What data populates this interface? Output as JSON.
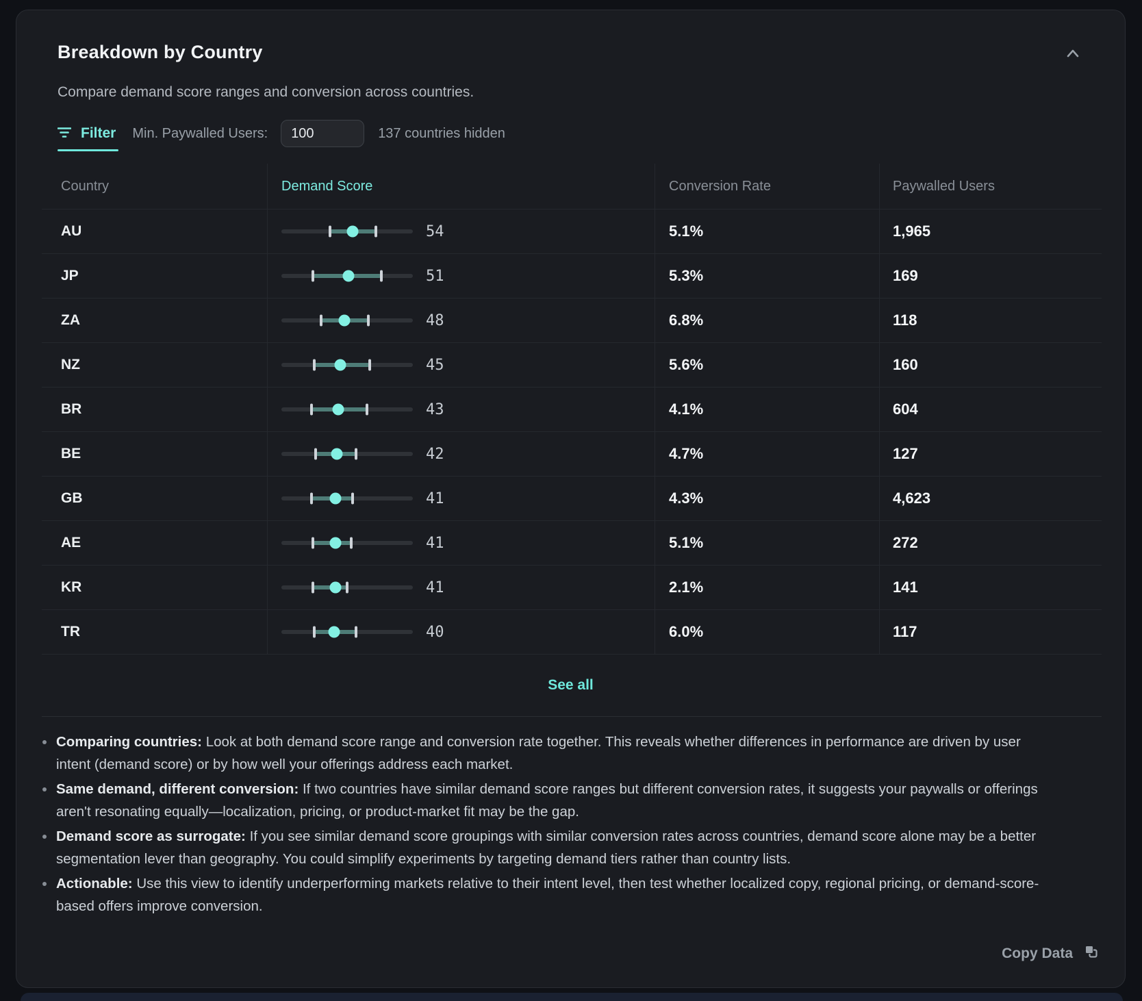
{
  "card": {
    "title": "Breakdown by Country",
    "subtitle": "Compare demand score ranges and conversion across countries."
  },
  "filter": {
    "tab_label": "Filter",
    "min_label": "Min. Paywalled Users:",
    "input_value": "100",
    "hidden_note": "137 countries hidden"
  },
  "table": {
    "columns": [
      "Country",
      "Demand Score",
      "Conversion Rate",
      "Paywalled Users"
    ],
    "score_scale": [
      0,
      100
    ],
    "rows": [
      {
        "country": "AU",
        "range_min": 37,
        "range_max": 72,
        "score": 54,
        "conversion": "5.1%",
        "paywalled": "1,965"
      },
      {
        "country": "JP",
        "range_min": 24,
        "range_max": 76,
        "score": 51,
        "conversion": "5.3%",
        "paywalled": "169"
      },
      {
        "country": "ZA",
        "range_min": 30,
        "range_max": 66,
        "score": 48,
        "conversion": "6.8%",
        "paywalled": "118"
      },
      {
        "country": "NZ",
        "range_min": 25,
        "range_max": 67,
        "score": 45,
        "conversion": "5.6%",
        "paywalled": "160"
      },
      {
        "country": "BR",
        "range_min": 23,
        "range_max": 65,
        "score": 43,
        "conversion": "4.1%",
        "paywalled": "604"
      },
      {
        "country": "BE",
        "range_min": 26,
        "range_max": 57,
        "score": 42,
        "conversion": "4.7%",
        "paywalled": "127"
      },
      {
        "country": "GB",
        "range_min": 23,
        "range_max": 54,
        "score": 41,
        "conversion": "4.3%",
        "paywalled": "4,623"
      },
      {
        "country": "AE",
        "range_min": 24,
        "range_max": 53,
        "score": 41,
        "conversion": "5.1%",
        "paywalled": "272"
      },
      {
        "country": "KR",
        "range_min": 24,
        "range_max": 50,
        "score": 41,
        "conversion": "2.1%",
        "paywalled": "141"
      },
      {
        "country": "TR",
        "range_min": 25,
        "range_max": 57,
        "score": 40,
        "conversion": "6.0%",
        "paywalled": "117"
      }
    ],
    "see_all_label": "See all"
  },
  "notes": [
    {
      "lead": "Comparing countries:",
      "text": "Look at both demand score range and conversion rate together. This reveals whether differences in performance are driven by user intent (demand score) or by how well your offerings address each market."
    },
    {
      "lead": "Same demand, different conversion:",
      "text": "If two countries have similar demand score ranges but different conversion rates, it suggests your paywalls or offerings aren't resonating equally—localization, pricing, or product-market fit may be the gap."
    },
    {
      "lead": "Demand score as surrogate:",
      "text": "If you see similar demand score groupings with similar conversion rates across countries, demand score alone may be a better segmentation lever than geography. You could simplify experiments by targeting demand tiers rather than country lists."
    },
    {
      "lead": "Actionable:",
      "text": "Use this view to identify underperforming markets relative to their intent level, then test whether localized copy, regional pricing, or demand-score-based offers improve conversion."
    }
  ],
  "footer": {
    "copy_label": "Copy Data"
  },
  "colors": {
    "accent": "#7DEBE0",
    "dot": "#83F0E3",
    "range_bar": "#4E7C77",
    "track": "#2F3237",
    "tick": "#CED3D8",
    "card_bg": "#1A1C21",
    "page_bg": "#0F1116"
  }
}
